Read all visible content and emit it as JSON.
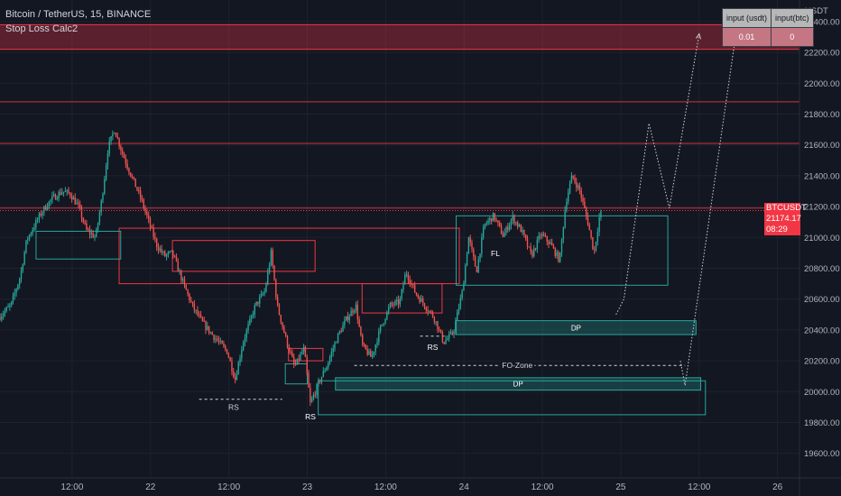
{
  "header": {
    "symbol_line": "Bitcoin / TetherUS, 15, BINANCE",
    "indicator_name": "Stop Loss Calc2"
  },
  "calc_table": {
    "headers": [
      "input (usdt)",
      "input(btc)"
    ],
    "values": [
      "0.01",
      "0"
    ]
  },
  "price_tag": {
    "ticker": "BTCUSDT",
    "price": "21174.17",
    "countdown": "08:29"
  },
  "chart_data": {
    "type": "candlestick",
    "ylabel": "USDT",
    "ylim": [
      19440,
      22540
    ],
    "y_ticks": [
      22400,
      22200,
      22000,
      21800,
      21600,
      21400,
      21200,
      21000,
      20800,
      20600,
      20400,
      20200,
      20000,
      19800,
      19600
    ],
    "y_tick_labels": [
      "22400.00",
      "22200.00",
      "22000.00",
      "21800.00",
      "21600.00",
      "21400.00",
      "21200.00",
      "21000.00",
      "20800.00",
      "20600.00",
      "20400.00",
      "20200.00",
      "20000.00",
      "19800.00",
      "19600.00"
    ],
    "x_ticks": [
      {
        "t": 0.5,
        "label": "12:00"
      },
      {
        "t": 1.0,
        "label": "22"
      },
      {
        "t": 1.5,
        "label": "12:00"
      },
      {
        "t": 2.0,
        "label": "23"
      },
      {
        "t": 2.5,
        "label": "12:00"
      },
      {
        "t": 3.0,
        "label": "24"
      },
      {
        "t": 3.5,
        "label": "12:00"
      },
      {
        "t": 4.0,
        "label": "25"
      },
      {
        "t": 4.5,
        "label": "12:00"
      },
      {
        "t": 5.0,
        "label": "26"
      }
    ],
    "x_range": [
      0.04,
      5.14
    ],
    "last_price": 21174.17,
    "colors": {
      "up": "#26a69a",
      "down": "#ef5350",
      "zone_red": "#f23645",
      "zone_teal": "#26a69a",
      "grid": "#1e222d",
      "text": "#b2b5be"
    },
    "price_path": [
      [
        0.04,
        20480
      ],
      [
        0.12,
        20560
      ],
      [
        0.18,
        20750
      ],
      [
        0.22,
        20980
      ],
      [
        0.26,
        21060
      ],
      [
        0.32,
        21170
      ],
      [
        0.38,
        21250
      ],
      [
        0.45,
        21300
      ],
      [
        0.5,
        21280
      ],
      [
        0.55,
        21200
      ],
      [
        0.6,
        21050
      ],
      [
        0.66,
        21000
      ],
      [
        0.7,
        21250
      ],
      [
        0.74,
        21580
      ],
      [
        0.78,
        21700
      ],
      [
        0.83,
        21550
      ],
      [
        0.88,
        21420
      ],
      [
        0.95,
        21250
      ],
      [
        1.0,
        21100
      ],
      [
        1.05,
        20950
      ],
      [
        1.1,
        20880
      ],
      [
        1.15,
        20900
      ],
      [
        1.22,
        20700
      ],
      [
        1.28,
        20550
      ],
      [
        1.34,
        20450
      ],
      [
        1.42,
        20350
      ],
      [
        1.5,
        20260
      ],
      [
        1.55,
        20080
      ],
      [
        1.6,
        20320
      ],
      [
        1.68,
        20560
      ],
      [
        1.74,
        20650
      ],
      [
        1.78,
        20900
      ],
      [
        1.82,
        20550
      ],
      [
        1.88,
        20320
      ],
      [
        1.93,
        20160
      ],
      [
        1.99,
        20280
      ],
      [
        2.03,
        19920
      ],
      [
        2.08,
        20050
      ],
      [
        2.14,
        20180
      ],
      [
        2.2,
        20350
      ],
      [
        2.26,
        20470
      ],
      [
        2.32,
        20560
      ],
      [
        2.36,
        20300
      ],
      [
        2.42,
        20220
      ],
      [
        2.48,
        20420
      ],
      [
        2.54,
        20560
      ],
      [
        2.6,
        20580
      ],
      [
        2.64,
        20780
      ],
      [
        2.7,
        20640
      ],
      [
        2.76,
        20560
      ],
      [
        2.82,
        20480
      ],
      [
        2.88,
        20320
      ],
      [
        2.94,
        20380
      ],
      [
        3.0,
        20650
      ],
      [
        3.04,
        21000
      ],
      [
        3.09,
        20780
      ],
      [
        3.14,
        21080
      ],
      [
        3.2,
        21140
      ],
      [
        3.26,
        21010
      ],
      [
        3.32,
        21130
      ],
      [
        3.38,
        21040
      ],
      [
        3.44,
        20880
      ],
      [
        3.5,
        21020
      ],
      [
        3.56,
        20960
      ],
      [
        3.62,
        20850
      ],
      [
        3.66,
        21230
      ],
      [
        3.7,
        21400
      ],
      [
        3.75,
        21300
      ],
      [
        3.8,
        21100
      ],
      [
        3.84,
        20900
      ],
      [
        3.88,
        21174
      ]
    ],
    "zones_red": [
      {
        "t0": 0.0,
        "t1": 5.14,
        "p0": 22220,
        "p1": 22380
      },
      {
        "t0": 0.8,
        "t1": 2.97,
        "p0": 20700,
        "p1": 21060
      },
      {
        "t0": 1.14,
        "t1": 2.05,
        "p0": 20780,
        "p1": 20980
      },
      {
        "t0": 2.35,
        "t1": 2.86,
        "p0": 20510,
        "p1": 20700
      },
      {
        "t0": 1.88,
        "t1": 2.1,
        "p0": 20200,
        "p1": 20280
      }
    ],
    "red_lines": [
      21880,
      21610,
      21190
    ],
    "zones_teal": [
      {
        "t0": 0.27,
        "t1": 0.81,
        "p0": 20860,
        "p1": 21040,
        "label": ""
      },
      {
        "t0": 2.95,
        "t1": 4.3,
        "p0": 20690,
        "p1": 21140,
        "label": ""
      },
      {
        "t0": 2.95,
        "t1": 4.48,
        "p0": 20370,
        "p1": 20460,
        "label": "DP"
      },
      {
        "t0": 2.18,
        "t1": 4.51,
        "p0": 20010,
        "p1": 20090,
        "label": "DP"
      },
      {
        "t0": 2.07,
        "t1": 4.54,
        "p0": 19850,
        "p1": 20070,
        "label": ""
      },
      {
        "t0": 1.86,
        "t1": 2.0,
        "p0": 20050,
        "p1": 20180,
        "label": ""
      }
    ],
    "dashed_levels": [
      {
        "t0": 1.31,
        "t1": 1.84,
        "p": 19950,
        "label": "RS",
        "lt": 1.53,
        "lp": 19900
      },
      {
        "t0": 2.3,
        "t1": 4.41,
        "p": 20170,
        "label": "FO-Zone",
        "lt": 3.34,
        "lp": 20170
      },
      {
        "t0": 2.72,
        "t1": 2.88,
        "p": 20360,
        "label": "",
        "lt": 0,
        "lp": 0
      }
    ],
    "annotations": [
      {
        "text": "RS",
        "t": 2.02,
        "p": 19820
      },
      {
        "text": "RS",
        "t": 2.8,
        "p": 20270
      },
      {
        "text": "FL",
        "t": 3.2,
        "p": 20880
      }
    ],
    "projection_path_1": [
      [
        3.97,
        20500
      ],
      [
        4.02,
        20600
      ],
      [
        4.18,
        21740
      ],
      [
        4.31,
        21190
      ],
      [
        4.5,
        22320
      ]
    ],
    "projection_path_2": [
      [
        4.38,
        20200
      ],
      [
        4.41,
        20040
      ],
      [
        4.74,
        22360
      ]
    ]
  }
}
